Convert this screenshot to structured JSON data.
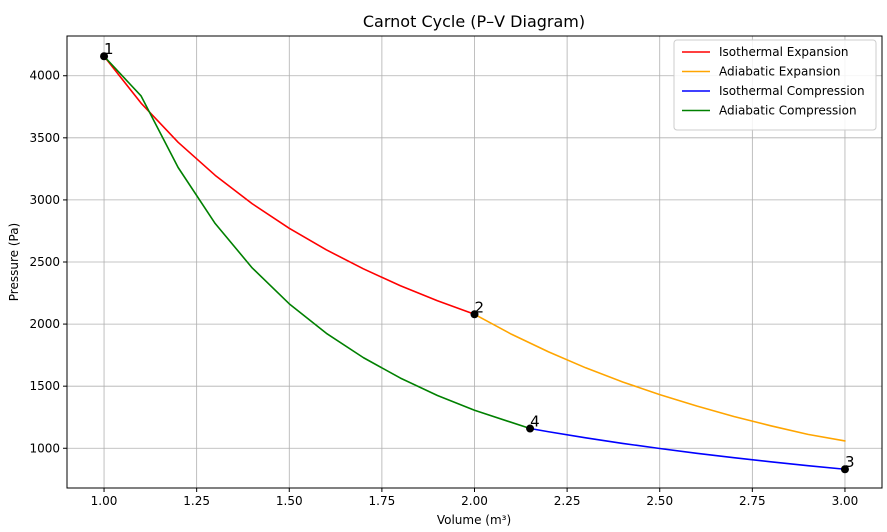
{
  "chart_data": {
    "type": "line",
    "title": "Carnot Cycle (P–V Diagram)",
    "xlabel": "Volume (m³)",
    "ylabel": "Pressure (Pa)",
    "xlim": [
      0.9,
      3.1
    ],
    "ylim": [
      680,
      4320
    ],
    "xticks": [
      1.0,
      1.25,
      1.5,
      1.75,
      2.0,
      2.25,
      2.5,
      2.75,
      3.0
    ],
    "xtick_labels": [
      "1.00",
      "1.25",
      "1.50",
      "1.75",
      "2.00",
      "2.25",
      "2.50",
      "2.75",
      "3.00"
    ],
    "yticks": [
      1000,
      1500,
      2000,
      2500,
      3000,
      3500,
      4000
    ],
    "ytick_labels": [
      "1000",
      "1500",
      "2000",
      "2500",
      "3000",
      "3500",
      "4000"
    ],
    "grid": true,
    "legend_position": "top-right",
    "series": [
      {
        "name": "Isothermal Expansion",
        "color": "#ff0000",
        "x": [
          1.0,
          1.1,
          1.2,
          1.3,
          1.4,
          1.5,
          1.6,
          1.7,
          1.8,
          1.9,
          2.0
        ],
        "y": [
          4157,
          3779,
          3464,
          3198,
          2969,
          2771,
          2598,
          2445,
          2309,
          2188,
          2079
        ]
      },
      {
        "name": "Adiabatic Expansion",
        "color": "#ffa500",
        "x": [
          2.0,
          2.1,
          2.2,
          2.3,
          2.4,
          2.5,
          2.6,
          2.7,
          2.8,
          2.9,
          3.0
        ],
        "y": [
          2079,
          1918,
          1776,
          1648,
          1534,
          1432,
          1340,
          1256,
          1181,
          1112,
          1059
        ]
      },
      {
        "name": "Isothermal Compression",
        "color": "#0000ff",
        "x": [
          3.0,
          2.9,
          2.8,
          2.7,
          2.6,
          2.5,
          2.4,
          2.3,
          2.2,
          2.15
        ],
        "y": [
          831,
          860,
          891,
          924,
          959,
          998,
          1039,
          1084,
          1133,
          1159
        ]
      },
      {
        "name": "Adiabatic Compression",
        "color": "#008000",
        "x": [
          2.15,
          2.0,
          1.9,
          1.8,
          1.7,
          1.6,
          1.5,
          1.4,
          1.3,
          1.2,
          1.1,
          1.0
        ],
        "y": [
          1159,
          1306,
          1425,
          1565,
          1730,
          1926,
          2163,
          2452,
          2810,
          3261,
          3837,
          4157
        ]
      }
    ],
    "points": [
      {
        "label": "1",
        "x": 1.0,
        "y": 4157
      },
      {
        "label": "2",
        "x": 2.0,
        "y": 2079
      },
      {
        "label": "3",
        "x": 3.0,
        "y": 831
      },
      {
        "label": "4",
        "x": 2.15,
        "y": 1159
      }
    ]
  }
}
